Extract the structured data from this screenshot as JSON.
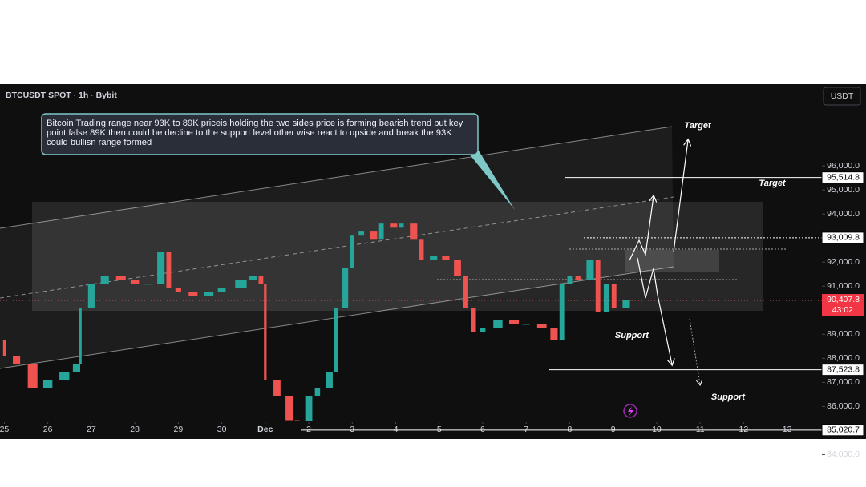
{
  "chart_data": {
    "type": "candlestick",
    "title": "BTCUSDT SPOT · 1h · Bybit",
    "currency": "USDT",
    "annotation": "Bitcoin Trading range near 93K to 89K priceis holding the two sides price is forming bearish trend but key point false 89K then could be decline to the support level other wise react to upside and break the 93K could bullisn range formed",
    "labels": [
      "Target",
      "Target",
      "Support",
      "Support"
    ],
    "x": [
      -0.1,
      0,
      0.28,
      0.65,
      1,
      1.38,
      1.66,
      1.75,
      2,
      2.31,
      2.68,
      3,
      3.32,
      3.6,
      3.78,
      4,
      4.34,
      4.7,
      5,
      5.44,
      5.72,
      5.9,
      6,
      6.27,
      6.55,
      6.73,
      7,
      7.2,
      7.47,
      7.62,
      7.84,
      8,
      8.21,
      8.49,
      8.67,
      8.95,
      9.13,
      9.41,
      9.59,
      9.87,
      10.15,
      10.42,
      10.61,
      10.79,
      11,
      11.35,
      11.72,
      12,
      12.36,
      12.64,
      12.82,
      13,
      13.19,
      13.47,
      13.65,
      13.84,
      14.02,
      14.3,
      14.39
    ],
    "values": [
      88770,
      88100,
      87770,
      86770,
      87100,
      87430,
      87770,
      90100,
      91100,
      91430,
      91270,
      91100,
      91100,
      92430,
      90930,
      90770,
      90600,
      90770,
      90930,
      91270,
      91430,
      91100,
      87100,
      86430,
      85430,
      85100,
      86430,
      86770,
      87430,
      90100,
      91770,
      93100,
      93270,
      92930,
      93600,
      93430,
      93600,
      92930,
      92100,
      92270,
      92100,
      91430,
      90100,
      89100,
      89270,
      89600,
      89430,
      89430,
      89270,
      88770,
      91100,
      91430,
      91270,
      92100,
      89930,
      91100,
      90100,
      90430,
      90407.8
    ],
    "up_color": "#26a69a",
    "down_color": "#ef5350",
    "xlim": [
      -0.1,
      18.8
    ],
    "ylim": [
      99400,
      83183
    ],
    "xticks": [
      {
        "value": 0,
        "label": "25"
      },
      {
        "value": 1,
        "label": "26"
      },
      {
        "value": 2,
        "label": "27"
      },
      {
        "value": 3,
        "label": "28"
      },
      {
        "value": 4,
        "label": "29"
      },
      {
        "value": 5,
        "label": "30"
      },
      {
        "value": 6,
        "label": "Dec"
      },
      {
        "value": 7,
        "label": "2"
      },
      {
        "value": 8,
        "label": "3"
      },
      {
        "value": 9,
        "label": "4"
      },
      {
        "value": 10,
        "label": "5"
      },
      {
        "value": 11,
        "label": "6"
      },
      {
        "value": 12,
        "label": "7"
      },
      {
        "value": 13,
        "label": "8"
      },
      {
        "value": 14,
        "label": "9"
      },
      {
        "value": 15,
        "label": "10"
      },
      {
        "value": 16,
        "label": "11"
      },
      {
        "value": 17,
        "label": "12"
      },
      {
        "value": 18,
        "label": "13"
      }
    ],
    "yticks": [
      {
        "value": 96000,
        "label": "96,000.0"
      },
      {
        "value": 95000,
        "label": "95,000.0"
      },
      {
        "value": 94000,
        "label": "94,000.0"
      },
      {
        "value": 93000,
        "label": "93,000.0"
      },
      {
        "value": 92000,
        "label": "92,000.0"
      },
      {
        "value": 91000,
        "label": "91,000.0"
      },
      {
        "value": 89000,
        "label": "89,000.0"
      },
      {
        "value": 88000,
        "label": "88,000.0"
      },
      {
        "value": 87000,
        "label": "87,000.0"
      },
      {
        "value": 86000,
        "label": "86,000.0"
      },
      {
        "value": 84000,
        "label": "84,000.0"
      }
    ],
    "levels": [
      {
        "value": 95514.8,
        "label": "95,514.8"
      },
      {
        "value": 93009.8,
        "label": "93,009.8"
      },
      {
        "value": 87523.8,
        "label": "87,523.8"
      },
      {
        "value": 85020.7,
        "label": "85,020.7"
      }
    ],
    "current_price": {
      "value": 90407.8,
      "label": "90,407.8"
    },
    "countdown": "43:02"
  }
}
